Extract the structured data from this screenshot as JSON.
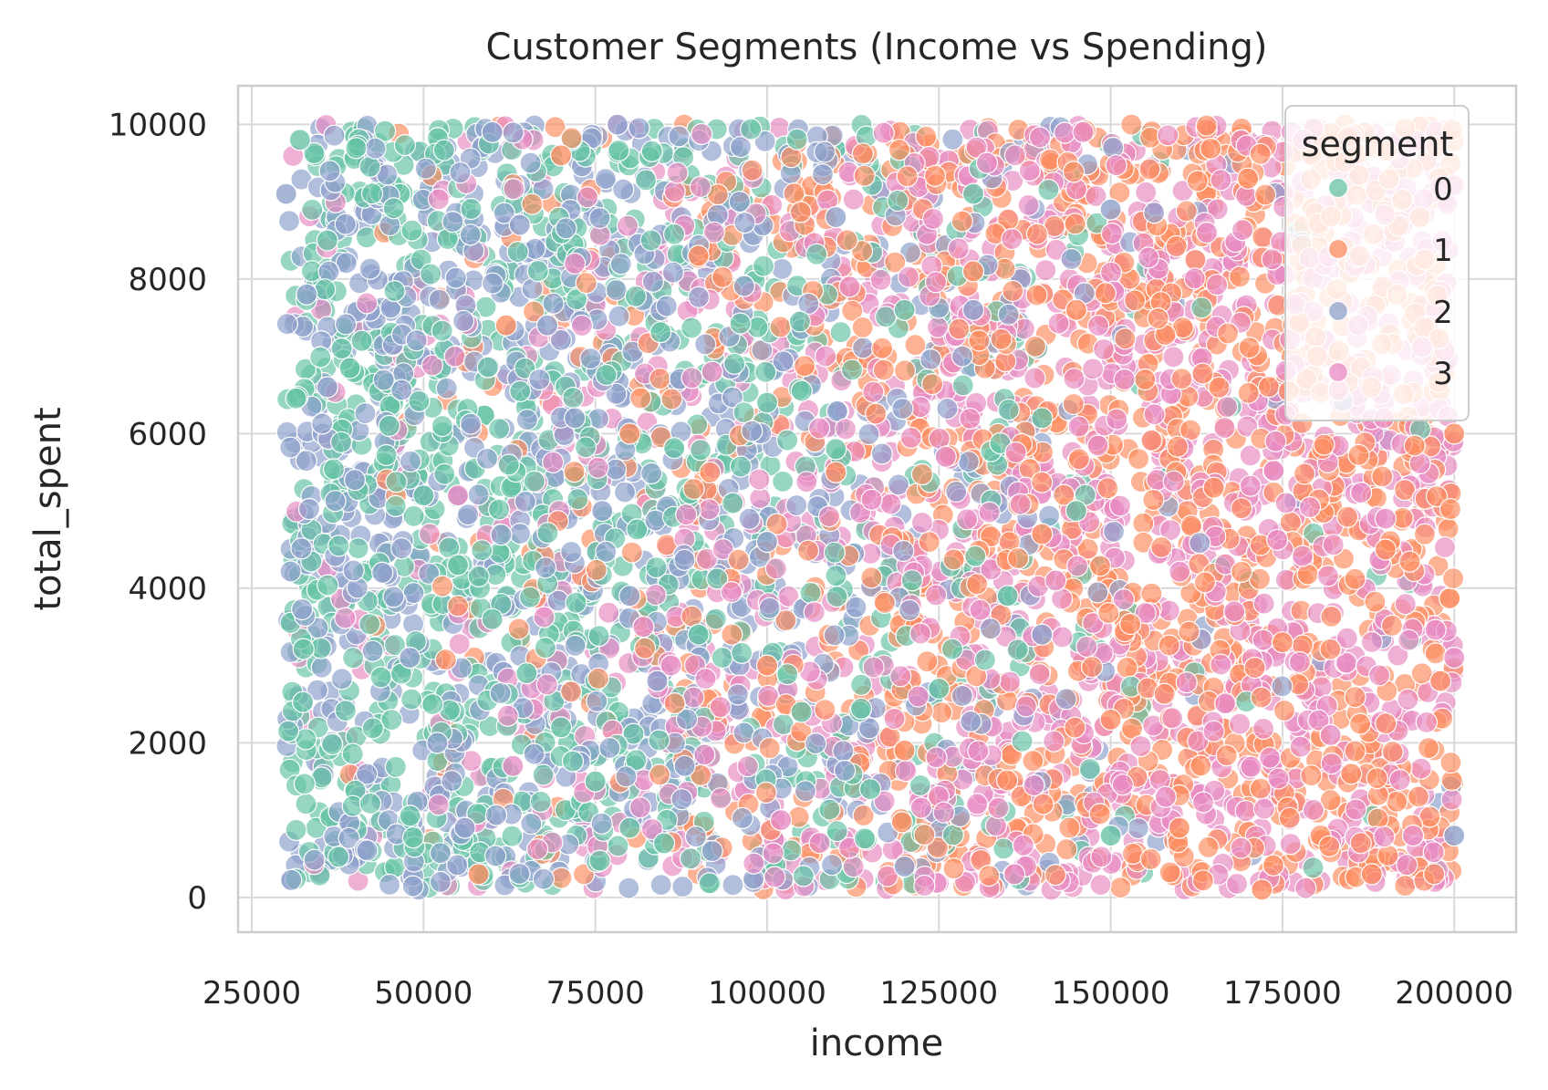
{
  "chart_data": {
    "type": "scatter",
    "title": "Customer Segments (Income vs Spending)",
    "xlabel": "income",
    "ylabel": "total_spent",
    "xlim": [
      23000,
      209000
    ],
    "ylim": [
      -450,
      10500
    ],
    "xticks": [
      25000,
      50000,
      75000,
      100000,
      125000,
      150000,
      175000,
      200000
    ],
    "yticks": [
      0,
      2000,
      4000,
      6000,
      8000,
      10000
    ],
    "grid": true,
    "legend": {
      "title": "segment",
      "placement": "top-right"
    },
    "x_range_of_points": [
      30000,
      200000
    ],
    "y_range_of_points": [
      100,
      10000
    ],
    "series": [
      {
        "name": "0",
        "color": "#66c2a5",
        "description_center_x": 70000,
        "points": [
          [
            32000,
            9800
          ],
          [
            36000,
            8500
          ],
          [
            41000,
            7200
          ],
          [
            45000,
            6100
          ],
          [
            50000,
            5200
          ],
          [
            55000,
            4300
          ],
          [
            60000,
            3600
          ],
          [
            65000,
            2900
          ],
          [
            70000,
            2200
          ],
          [
            75000,
            1500
          ],
          [
            80000,
            900
          ],
          [
            85000,
            700
          ],
          [
            90000,
            3400
          ],
          [
            95000,
            5100
          ],
          [
            100000,
            6400
          ],
          [
            105000,
            2400
          ],
          [
            110000,
            5800
          ],
          [
            115000,
            1400
          ],
          [
            120000,
            7600
          ],
          [
            125000,
            2700
          ],
          [
            130000,
            9100
          ],
          [
            135000,
            3900
          ],
          [
            140000,
            6200
          ],
          [
            145000,
            5000
          ],
          [
            150000,
            800
          ]
        ]
      },
      {
        "name": "1",
        "color": "#fc8d62",
        "description_center_x": 160000,
        "points": [
          [
            58000,
            300
          ],
          [
            62000,
            7400
          ],
          [
            70000,
            9600
          ],
          [
            80000,
            6000
          ],
          [
            90000,
            8300
          ],
          [
            100000,
            3000
          ],
          [
            110000,
            5500
          ],
          [
            120000,
            1900
          ],
          [
            130000,
            8100
          ],
          [
            140000,
            4700
          ],
          [
            150000,
            2300
          ],
          [
            155000,
            6700
          ],
          [
            160000,
            900
          ],
          [
            165000,
            5300
          ],
          [
            170000,
            9300
          ],
          [
            175000,
            3300
          ],
          [
            180000,
            7000
          ],
          [
            185000,
            1600
          ],
          [
            190000,
            4500
          ],
          [
            195000,
            8800
          ],
          [
            198000,
            2800
          ],
          [
            200000,
            6000
          ],
          [
            188000,
            300
          ],
          [
            172000,
            100
          ],
          [
            145000,
            7600
          ]
        ]
      },
      {
        "name": "2",
        "color": "#8da0cb",
        "description_center_x": 60000,
        "points": [
          [
            30000,
            9100
          ],
          [
            33000,
            7800
          ],
          [
            36000,
            6600
          ],
          [
            40000,
            5400
          ],
          [
            44000,
            4200
          ],
          [
            48000,
            3100
          ],
          [
            52000,
            2000
          ],
          [
            56000,
            900
          ],
          [
            60000,
            9900
          ],
          [
            64000,
            8700
          ],
          [
            68000,
            7400
          ],
          [
            72000,
            6200
          ],
          [
            76000,
            5000
          ],
          [
            80000,
            3900
          ],
          [
            84000,
            2800
          ],
          [
            88000,
            1700
          ],
          [
            92000,
            600
          ],
          [
            96000,
            9000
          ],
          [
            100000,
            4600
          ],
          [
            110000,
            8800
          ],
          [
            120000,
            400
          ],
          [
            130000,
            7600
          ],
          [
            140000,
            3400
          ],
          [
            150000,
            8900
          ],
          [
            200000,
            800
          ]
        ]
      },
      {
        "name": "3",
        "color": "#e78ac3",
        "description_center_x": 165000,
        "points": [
          [
            55000,
            5200
          ],
          [
            63000,
            1700
          ],
          [
            72000,
            8200
          ],
          [
            82000,
            3500
          ],
          [
            92000,
            6800
          ],
          [
            102000,
            1000
          ],
          [
            112000,
            7900
          ],
          [
            122000,
            2600
          ],
          [
            132000,
            9500
          ],
          [
            142000,
            4100
          ],
          [
            152000,
            6700
          ],
          [
            158000,
            1300
          ],
          [
            164000,
            8600
          ],
          [
            168000,
            3700
          ],
          [
            174000,
            5900
          ],
          [
            178000,
            9800
          ],
          [
            182000,
            2100
          ],
          [
            186000,
            7400
          ],
          [
            190000,
            4900
          ],
          [
            194000,
            800
          ],
          [
            198000,
            9200
          ],
          [
            200000,
            3100
          ],
          [
            146000,
            9900
          ],
          [
            136000,
            300
          ],
          [
            126000,
            5700
          ]
        ]
      }
    ]
  }
}
